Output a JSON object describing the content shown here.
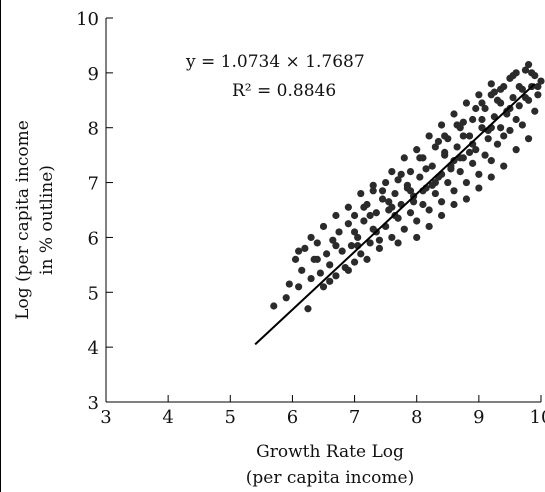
{
  "chart_data": {
    "type": "scatter",
    "title": "",
    "xlabel_line1": "Growth Rate Log",
    "xlabel_line2": "(per capita income)",
    "ylabel_line1": "Log (per capita income",
    "ylabel_line2": "in % outline)",
    "xlim": [
      3,
      10
    ],
    "ylim": [
      3,
      10
    ],
    "x_ticks": [
      "3",
      "4",
      "5",
      "6",
      "7",
      "8",
      "9",
      "10"
    ],
    "y_ticks": [
      "3",
      "4",
      "5",
      "6",
      "7",
      "8",
      "9",
      "10"
    ],
    "grid": false,
    "legend": "none",
    "annotation_equation": "y = 1.0734 × 1.7687",
    "annotation_r2": "R² = 0.8846",
    "trendline": {
      "x": [
        5.4,
        9.9
      ],
      "y": [
        4.05,
        8.8
      ]
    },
    "points": [
      [
        5.7,
        4.75
      ],
      [
        5.9,
        4.9
      ],
      [
        5.95,
        5.15
      ],
      [
        6.05,
        5.6
      ],
      [
        6.1,
        5.1
      ],
      [
        6.15,
        5.4
      ],
      [
        6.2,
        5.8
      ],
      [
        6.25,
        4.7
      ],
      [
        6.3,
        5.25
      ],
      [
        6.35,
        5.6
      ],
      [
        6.4,
        5.9
      ],
      [
        6.45,
        5.35
      ],
      [
        6.5,
        5.1
      ],
      [
        6.55,
        5.7
      ],
      [
        6.6,
        5.5
      ],
      [
        6.65,
        5.95
      ],
      [
        6.7,
        5.3
      ],
      [
        6.75,
        6.1
      ],
      [
        6.8,
        5.75
      ],
      [
        6.85,
        5.45
      ],
      [
        6.9,
        6.25
      ],
      [
        6.95,
        5.85
      ],
      [
        7.0,
        5.55
      ],
      [
        7.0,
        6.4
      ],
      [
        7.05,
        6.0
      ],
      [
        7.1,
        5.7
      ],
      [
        7.15,
        6.3
      ],
      [
        7.2,
        6.6
      ],
      [
        7.25,
        5.9
      ],
      [
        7.3,
        6.15
      ],
      [
        7.3,
        6.85
      ],
      [
        7.35,
        6.45
      ],
      [
        7.4,
        5.95
      ],
      [
        7.45,
        6.7
      ],
      [
        7.5,
        6.2
      ],
      [
        7.5,
        7.0
      ],
      [
        7.55,
        6.5
      ],
      [
        7.6,
        6.0
      ],
      [
        7.65,
        6.8
      ],
      [
        7.7,
        6.35
      ],
      [
        7.7,
        7.05
      ],
      [
        7.75,
        6.6
      ],
      [
        7.8,
        6.15
      ],
      [
        7.85,
        6.9
      ],
      [
        7.9,
        6.45
      ],
      [
        7.9,
        7.2
      ],
      [
        7.95,
        6.75
      ],
      [
        8.0,
        6.3
      ],
      [
        8.05,
        7.1
      ],
      [
        8.1,
        6.6
      ],
      [
        8.1,
        7.45
      ],
      [
        8.15,
        6.9
      ],
      [
        8.2,
        6.5
      ],
      [
        8.25,
        7.3
      ],
      [
        8.3,
        6.8
      ],
      [
        8.3,
        7.65
      ],
      [
        8.35,
        7.1
      ],
      [
        8.4,
        6.65
      ],
      [
        8.45,
        7.5
      ],
      [
        8.5,
        7.0
      ],
      [
        8.5,
        7.8
      ],
      [
        8.55,
        7.3
      ],
      [
        8.6,
        6.85
      ],
      [
        8.65,
        7.65
      ],
      [
        8.7,
        7.2
      ],
      [
        8.7,
        8.0
      ],
      [
        8.75,
        7.45
      ],
      [
        8.8,
        7.0
      ],
      [
        8.85,
        7.85
      ],
      [
        8.9,
        7.35
      ],
      [
        8.9,
        8.15
      ],
      [
        8.95,
        7.6
      ],
      [
        9.0,
        7.15
      ],
      [
        9.05,
        8.0
      ],
      [
        9.1,
        7.5
      ],
      [
        9.1,
        8.35
      ],
      [
        9.15,
        7.8
      ],
      [
        9.2,
        7.4
      ],
      [
        9.2,
        8.6
      ],
      [
        9.25,
        8.2
      ],
      [
        9.3,
        7.7
      ],
      [
        9.3,
        8.5
      ],
      [
        9.35,
        8.0
      ],
      [
        9.4,
        8.75
      ],
      [
        9.4,
        7.85
      ],
      [
        9.45,
        8.3
      ],
      [
        9.5,
        8.9
      ],
      [
        9.5,
        7.95
      ],
      [
        9.55,
        8.55
      ],
      [
        9.6,
        8.15
      ],
      [
        9.6,
        9.0
      ],
      [
        9.65,
        8.4
      ],
      [
        9.7,
        8.7
      ],
      [
        9.7,
        8.05
      ],
      [
        9.75,
        9.05
      ],
      [
        9.8,
        8.5
      ],
      [
        9.8,
        9.15
      ],
      [
        9.85,
        8.75
      ],
      [
        9.9,
        8.3
      ],
      [
        9.9,
        8.95
      ],
      [
        9.95,
        8.6
      ],
      [
        10.0,
        8.85
      ],
      [
        6.3,
        6.0
      ],
      [
        6.5,
        6.2
      ],
      [
        6.7,
        6.4
      ],
      [
        6.9,
        6.55
      ],
      [
        7.1,
        6.8
      ],
      [
        7.3,
        6.95
      ],
      [
        7.6,
        7.2
      ],
      [
        7.8,
        7.45
      ],
      [
        8.0,
        7.6
      ],
      [
        8.2,
        7.85
      ],
      [
        8.4,
        8.05
      ],
      [
        8.6,
        8.25
      ],
      [
        8.8,
        8.45
      ],
      [
        9.0,
        8.6
      ],
      [
        9.2,
        8.8
      ],
      [
        6.6,
        5.2
      ],
      [
        6.9,
        5.4
      ],
      [
        7.2,
        5.6
      ],
      [
        7.4,
        5.8
      ],
      [
        7.7,
        5.9
      ],
      [
        8.0,
        6.0
      ],
      [
        8.2,
        6.2
      ],
      [
        8.4,
        6.4
      ],
      [
        8.6,
        6.6
      ],
      [
        8.8,
        6.7
      ],
      [
        9.0,
        6.9
      ],
      [
        9.2,
        7.1
      ],
      [
        9.4,
        7.3
      ],
      [
        9.6,
        7.6
      ],
      [
        9.8,
        7.8
      ],
      [
        7.0,
        6.1
      ],
      [
        7.25,
        6.4
      ],
      [
        7.55,
        6.65
      ],
      [
        7.85,
        6.95
      ],
      [
        8.15,
        7.25
      ],
      [
        8.45,
        7.55
      ],
      [
        8.75,
        7.85
      ],
      [
        9.05,
        8.15
      ],
      [
        9.35,
        8.45
      ],
      [
        9.65,
        8.75
      ],
      [
        7.15,
        6.55
      ],
      [
        7.45,
        6.85
      ],
      [
        7.75,
        7.15
      ],
      [
        8.05,
        7.45
      ],
      [
        8.35,
        7.75
      ],
      [
        8.65,
        8.05
      ],
      [
        8.95,
        8.35
      ],
      [
        9.25,
        8.65
      ],
      [
        6.1,
        5.75
      ],
      [
        6.4,
        5.6
      ],
      [
        6.7,
        5.85
      ],
      [
        7.05,
        5.85
      ],
      [
        7.35,
        6.1
      ],
      [
        7.65,
        6.4
      ],
      [
        7.95,
        6.65
      ],
      [
        8.25,
        6.95
      ],
      [
        8.55,
        7.25
      ],
      [
        8.85,
        7.55
      ],
      [
        9.15,
        7.95
      ],
      [
        9.45,
        8.25
      ],
      [
        9.75,
        8.55
      ],
      [
        8.3,
        7.0
      ],
      [
        8.6,
        7.4
      ],
      [
        8.9,
        7.7
      ],
      [
        9.2,
        8.0
      ],
      [
        9.5,
        8.35
      ],
      [
        7.6,
        6.55
      ],
      [
        7.9,
        6.85
      ],
      [
        8.45,
        7.85
      ],
      [
        8.75,
        8.1
      ],
      [
        9.05,
        8.45
      ],
      [
        9.35,
        8.7
      ],
      [
        9.55,
        8.95
      ],
      [
        9.85,
        9.0
      ],
      [
        9.95,
        8.75
      ],
      [
        8.1,
        6.85
      ],
      [
        8.4,
        7.15
      ],
      [
        8.7,
        7.45
      ]
    ]
  }
}
